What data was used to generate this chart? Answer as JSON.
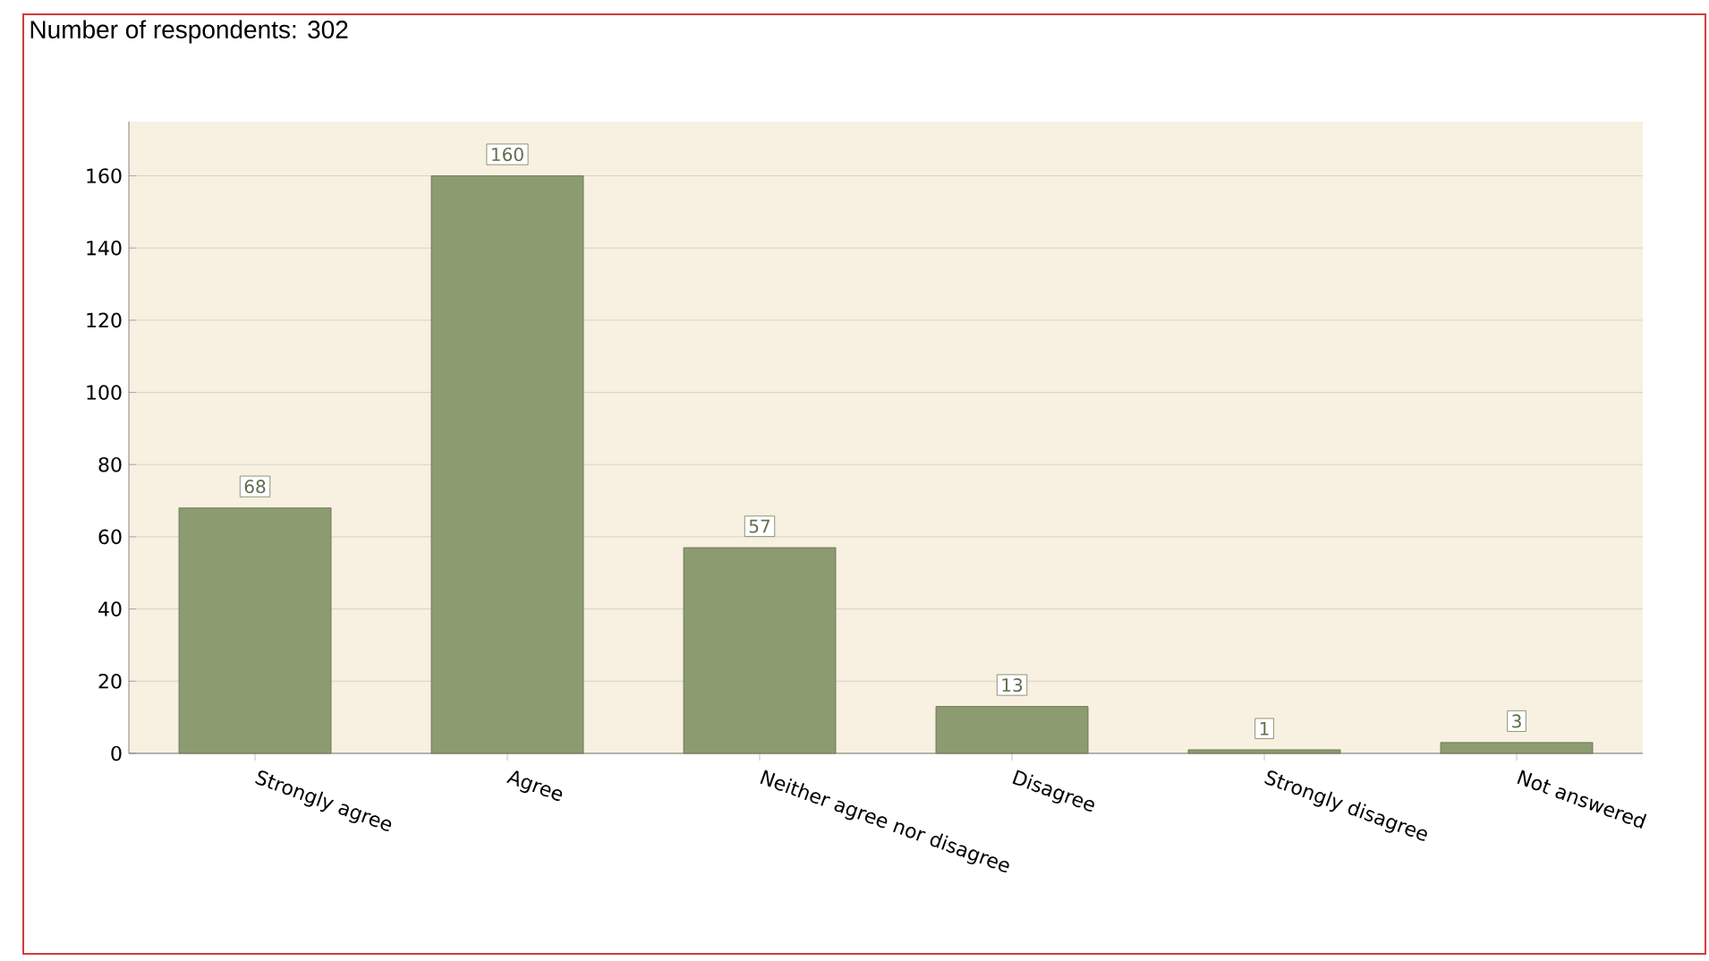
{
  "chart_data": {
    "type": "bar",
    "title": "Number of respondents: 302",
    "categories": [
      "Strongly agree",
      "Agree",
      "Neither agree nor disagree",
      "Disagree",
      "Strongly disagree",
      "Not answered"
    ],
    "values": [
      68,
      160,
      57,
      13,
      1,
      3
    ],
    "color": "#8c9c70",
    "ylim": [
      0,
      175
    ],
    "yticks": [
      0,
      20,
      40,
      60,
      80,
      100,
      120,
      140,
      160
    ],
    "grid": "y",
    "data_labels": true
  }
}
